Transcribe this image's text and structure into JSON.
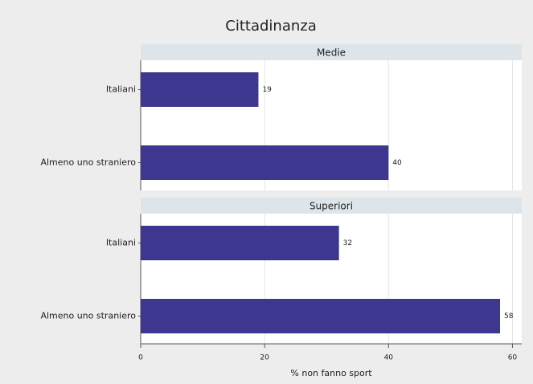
{
  "chart_data": {
    "type": "bar",
    "orientation": "horizontal",
    "title": "Cittadinanza",
    "xlabel": "% non fanno sport",
    "categories": [
      "Italiani",
      "Almeno uno straniero"
    ],
    "series": [
      {
        "name": "Medie",
        "color": "#3d3790",
        "values": [
          19,
          40
        ]
      },
      {
        "name": "Superiori",
        "color": "#3d3790",
        "values": [
          32,
          58
        ]
      }
    ],
    "xlim": [
      0,
      61.5
    ],
    "xticks": [
      0,
      20,
      40,
      60
    ],
    "grid": true
  }
}
